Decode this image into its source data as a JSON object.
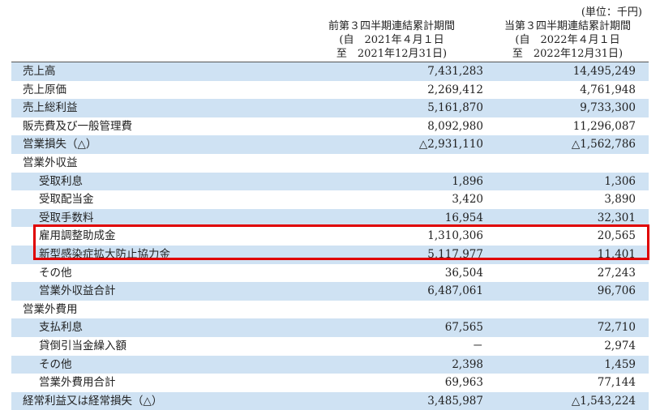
{
  "unit_label": "(単位：千円)",
  "headers": {
    "prior": {
      "title": "前第３四半期連結累計期間",
      "from": "(自　2021年４月１日",
      "to": "至　2021年12月31日)"
    },
    "current": {
      "title": "当第３四半期連結累計期間",
      "from": "(自　2022年４月１日",
      "to": "至　2022年12月31日)"
    }
  },
  "rows": [
    {
      "label": "売上高",
      "prior": "7,431,283",
      "current": "14,495,249"
    },
    {
      "label": "売上原価",
      "prior": "2,269,412",
      "current": "4,761,948"
    },
    {
      "label": "売上総利益",
      "prior": "5,161,870",
      "current": "9,733,300"
    },
    {
      "label": "販売費及び一般管理費",
      "prior": "8,092,980",
      "current": "11,296,087"
    },
    {
      "label": "営業損失（△）",
      "prior": "△2,931,110",
      "current": "△1,562,786"
    },
    {
      "label": "営業外収益",
      "prior": "",
      "current": ""
    },
    {
      "label": "受取利息",
      "prior": "1,896",
      "current": "1,306"
    },
    {
      "label": "受取配当金",
      "prior": "3,420",
      "current": "3,890"
    },
    {
      "label": "受取手数料",
      "prior": "16,954",
      "current": "32,301"
    },
    {
      "label": "雇用調整助成金",
      "prior": "1,310,306",
      "current": "20,565"
    },
    {
      "label": "新型感染症拡大防止協力金",
      "prior": "5,117,977",
      "current": "11,401"
    },
    {
      "label": "その他",
      "prior": "36,504",
      "current": "27,243"
    },
    {
      "label": "営業外収益合計",
      "prior": "6,487,061",
      "current": "96,706"
    },
    {
      "label": "営業外費用",
      "prior": "",
      "current": ""
    },
    {
      "label": "支払利息",
      "prior": "67,565",
      "current": "72,710"
    },
    {
      "label": "貸倒引当金繰入額",
      "prior": "－",
      "current": "2,974"
    },
    {
      "label": "その他",
      "prior": "2,398",
      "current": "1,459"
    },
    {
      "label": "営業外費用合計",
      "prior": "69,963",
      "current": "77,144"
    },
    {
      "label": "経常利益又は経常損失（△）",
      "prior": "3,485,987",
      "current": "△1,543,224"
    }
  ],
  "colors": {
    "row_shade": "#cfe2f3",
    "highlight_border": "#e00000"
  }
}
